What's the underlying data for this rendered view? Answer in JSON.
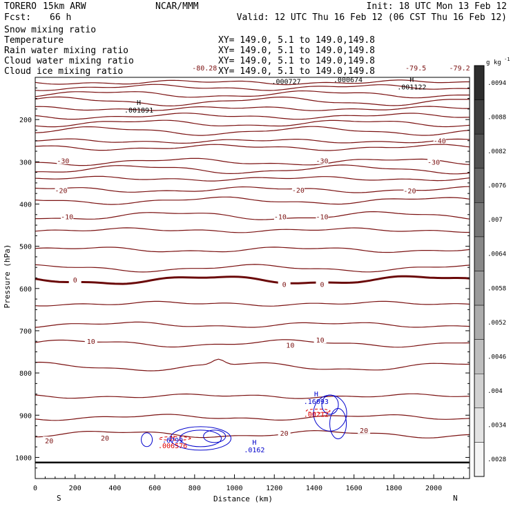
{
  "header": {
    "model": "TORERO",
    "resolution": "15km ARW",
    "org": "NCAR/MMM",
    "init": "Init: 18 UTC Mon 13 Feb 12",
    "fcst_label": "Fcst:",
    "fcst_value": "66 h",
    "valid": "Valid: 12 UTC Thu 16 Feb 12 (06 CST Thu 16 Feb 12)"
  },
  "legend": [
    {
      "name": "Snow mixing ratio",
      "xy": "",
      "color": "#000000"
    },
    {
      "name": "Temperature",
      "xy": "XY= 149.0,  5.1 to 149.0,149.8",
      "color": "#cc0000"
    },
    {
      "name": "Rain water mixing ratio",
      "xy": "XY= 149.0,  5.1 to 149.0,149.8",
      "color": "#cc0000"
    },
    {
      "name": "Cloud water mixing ratio",
      "xy": "XY= 149.0,  5.1 to 149.0,149.8",
      "color": "#0000cc"
    },
    {
      "name": "Cloud ice mixing ratio",
      "xy": "XY= 149.0,  5.1 to 149.0,149.8",
      "color": "#000000"
    }
  ],
  "legend_xy_first": "XY= 149.0,  5.1 to 149.0,149.8",
  "colors": {
    "temperature": "#7a1010",
    "freezing": "#6a0808",
    "rain": "#dd0000",
    "cloud_water": "#0000cc",
    "ground": "#000000",
    "frame": "#000000"
  },
  "chart_data": {
    "type": "contour",
    "title": "Vertical cross section (N-S)",
    "xlabel": "Distance (km)",
    "ylabel": "Pressure (hPa)",
    "xlim": [
      0,
      2180
    ],
    "ylim": [
      1050,
      100
    ],
    "x_ticks": [
      0,
      200,
      400,
      600,
      800,
      1000,
      1200,
      1400,
      1600,
      1800,
      2000
    ],
    "y_ticks": [
      200,
      300,
      400,
      500,
      600,
      700,
      800,
      900,
      1000
    ],
    "x_end_left": "S",
    "x_end_right": "N",
    "temperature_contours": [
      {
        "p": 112,
        "label": ""
      },
      {
        "p": 124,
        "label": ""
      },
      {
        "p": 140,
        "label": ""
      },
      {
        "p": 157,
        "label": ""
      },
      {
        "p": 174,
        "label": ""
      },
      {
        "p": 192,
        "label": ""
      },
      {
        "p": 209,
        "label": ""
      },
      {
        "p": 227,
        "label": ""
      },
      {
        "p": 251,
        "label": "-40"
      },
      {
        "p": 266,
        "label": ""
      },
      {
        "p": 300,
        "label": "-30"
      },
      {
        "p": 318,
        "label": ""
      },
      {
        "p": 340,
        "label": ""
      },
      {
        "p": 366,
        "label": "-20"
      },
      {
        "p": 392,
        "label": ""
      },
      {
        "p": 428,
        "label": "-10"
      },
      {
        "p": 462,
        "label": ""
      },
      {
        "p": 508,
        "label": ""
      },
      {
        "p": 552,
        "label": ""
      },
      {
        "p": 580,
        "label": "0"
      },
      {
        "p": 636,
        "label": ""
      },
      {
        "p": 686,
        "label": ""
      },
      {
        "p": 730,
        "label": "10"
      },
      {
        "p": 785,
        "label": ""
      },
      {
        "p": 855,
        "label": ""
      },
      {
        "p": 905,
        "label": ""
      },
      {
        "p": 945,
        "label": "20"
      }
    ],
    "contour_labels": [
      {
        "x": 140,
        "p": 299,
        "text": "-30"
      },
      {
        "x": 1440,
        "p": 299,
        "text": "-30"
      },
      {
        "x": 2000,
        "p": 302,
        "text": "-30"
      },
      {
        "x": 2030,
        "p": 251,
        "text": "-40"
      },
      {
        "x": 130,
        "p": 369,
        "text": "-20"
      },
      {
        "x": 1320,
        "p": 368,
        "text": "-20"
      },
      {
        "x": 1880,
        "p": 370,
        "text": "-20"
      },
      {
        "x": 160,
        "p": 431,
        "text": "-10"
      },
      {
        "x": 1230,
        "p": 431,
        "text": "-10"
      },
      {
        "x": 1440,
        "p": 431,
        "text": "-10"
      },
      {
        "x": 200,
        "p": 581,
        "text": "0"
      },
      {
        "x": 1250,
        "p": 591,
        "text": "0"
      },
      {
        "x": 1440,
        "p": 591,
        "text": "0"
      },
      {
        "x": 280,
        "p": 726,
        "text": "10"
      },
      {
        "x": 1280,
        "p": 735,
        "text": "10"
      },
      {
        "x": 1430,
        "p": 723,
        "text": "10"
      },
      {
        "x": 70,
        "p": 962,
        "text": "20"
      },
      {
        "x": 350,
        "p": 955,
        "text": "20"
      },
      {
        "x": 1250,
        "p": 944,
        "text": "20"
      },
      {
        "x": 1650,
        "p": 937,
        "text": "20"
      }
    ],
    "top_labels": [
      {
        "x": 850,
        "p": 100,
        "text": "-80.28"
      },
      {
        "x": 1910,
        "p": 100,
        "text": "-79.5"
      },
      {
        "x": 2130,
        "p": 100,
        "text": "-79.2"
      }
    ],
    "extrema": [
      {
        "x": 520,
        "p": 180,
        "mark": "H",
        "value": ".001891",
        "color": "#000000"
      },
      {
        "x": 1890,
        "p": 125,
        "mark": "H",
        "value": ".001122",
        "color": "#000000"
      },
      {
        "x": 1260,
        "p": 112,
        "mark": "",
        "value": ".000727",
        "color": "#000000"
      },
      {
        "x": 1570,
        "p": 108,
        "mark": "",
        "value": ".000674",
        "color": "#000000"
      },
      {
        "x": 690,
        "p": 975,
        "mark": "H",
        "value": ".006576",
        "color": "#dd0000"
      },
      {
        "x": 690,
        "p": 962,
        "mark": "",
        "value": ".6799",
        "color": "#0000cc"
      },
      {
        "x": 1100,
        "p": 985,
        "mark": "H",
        "value": ".0162",
        "color": "#0000cc"
      },
      {
        "x": 1410,
        "p": 900,
        "mark": "",
        "value": ".00212",
        "color": "#dd0000"
      },
      {
        "x": 1410,
        "p": 870,
        "mark": "H",
        "value": ".16093",
        "color": "#0000cc"
      }
    ],
    "colorbar": {
      "unit": "g kg",
      "unit_exp": "-1",
      "levels": [
        ".0028",
        ".0034",
        ".004",
        ".0046",
        ".0052",
        ".0058",
        ".0064",
        ".007",
        ".0076",
        ".0082",
        ".0088",
        ".0094"
      ]
    }
  }
}
